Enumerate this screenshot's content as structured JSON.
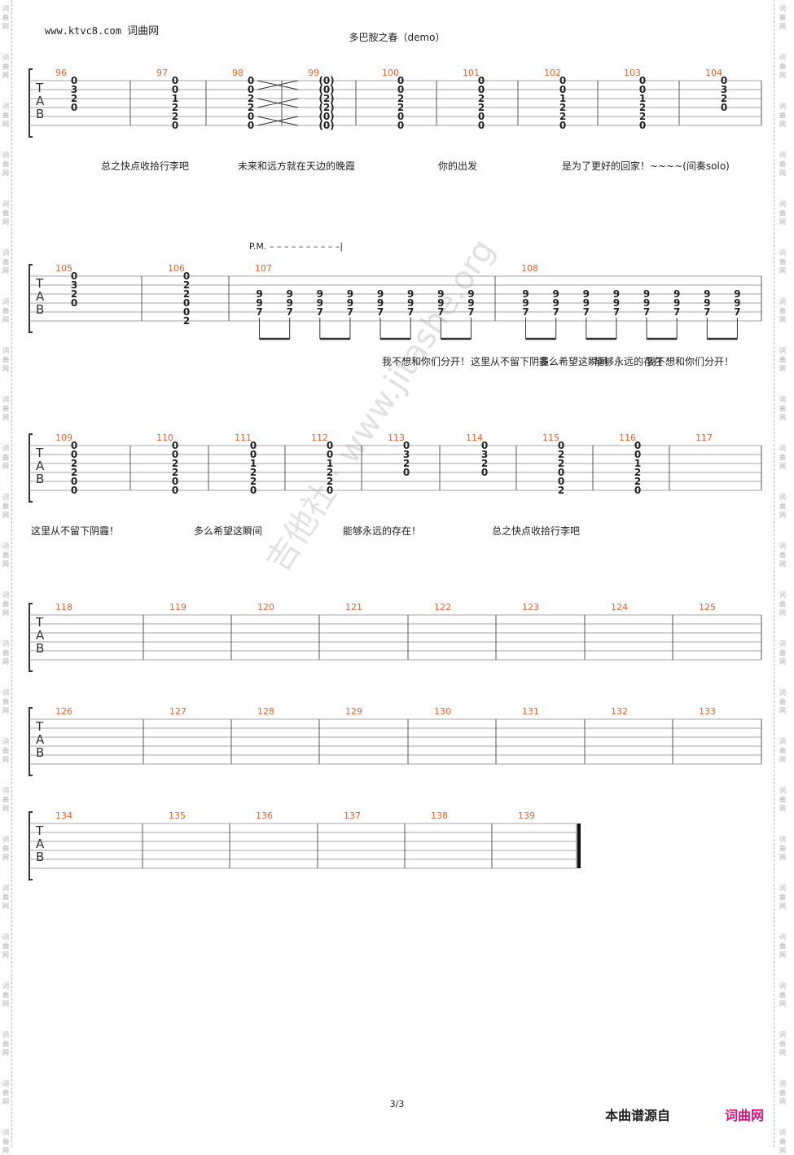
{
  "site_link": "www.ktvc8.com",
  "site_name": "词曲网",
  "title": "多巴胺之春（demo）",
  "page_number": "3/3",
  "source_label": "本曲谱源自",
  "brand": "词曲网",
  "watermark": "吉他社 · www.jitashe.org",
  "side_text": "词曲网",
  "palm_mute": "P.M.",
  "tab_letters": [
    "T",
    "A",
    "B"
  ],
  "lyrics_row1": [
    "总之快点收拾行李吧",
    "未来和远方就在天边的晚霞",
    "你的出发",
    "是为了更好的回家！~~~~(间奏solo)"
  ],
  "lyrics_row2": [
    "我不想和你们分开！",
    "这里从不留下阴霾",
    "多么希望这瞬间",
    "能够永远的存在",
    "我不想和你们分开！"
  ],
  "lyrics_row3": [
    "这里从不留下阴霾！",
    "多么希望这瞬间",
    "能够永远的存在！",
    "总之快点收拾行李吧"
  ],
  "systems": [
    {
      "measures": [
        {
          "num": "96",
          "chords": [
            [
              "0",
              "3",
              "2",
              "0",
              "",
              ""
            ]
          ]
        },
        {
          "num": "97",
          "chords": [
            [
              "0",
              "0",
              "1",
              "2",
              "2",
              "0"
            ]
          ]
        },
        {
          "num": "98",
          "chords": [
            [
              "0",
              "0",
              "2",
              "2",
              "0",
              "0"
            ]
          ]
        },
        {
          "num": "99",
          "chords": [
            [
              "(0)",
              "(0)",
              "(2)",
              "(2)",
              "(0)",
              "(0)"
            ]
          ]
        },
        {
          "num": "100",
          "chords": [
            [
              "0",
              "0",
              "2",
              "2",
              "0",
              "0"
            ]
          ]
        },
        {
          "num": "101",
          "chords": [
            [
              "0",
              "0",
              "2",
              "2",
              "0",
              "0"
            ]
          ]
        },
        {
          "num": "102",
          "chords": [
            [
              "0",
              "0",
              "1",
              "2",
              "2",
              "0"
            ]
          ]
        },
        {
          "num": "103",
          "chords": [
            [
              "0",
              "0",
              "1",
              "2",
              "2",
              "0"
            ]
          ]
        },
        {
          "num": "104",
          "chords": [
            [
              "0",
              "3",
              "2",
              "0",
              "",
              ""
            ]
          ]
        }
      ]
    },
    {
      "measures": [
        {
          "num": "105",
          "chords": [
            [
              "0",
              "3",
              "2",
              "0",
              "",
              ""
            ]
          ]
        },
        {
          "num": "106",
          "chords": [
            [
              "0",
              "2",
              "2",
              "0",
              "0",
              "2"
            ]
          ]
        },
        {
          "num": "107",
          "chords": [
            [
              "",
              "",
              "9",
              "9",
              "7",
              ""
            ],
            [
              "",
              "",
              "9",
              "9",
              "7",
              ""
            ],
            [
              "",
              "",
              "9",
              "9",
              "7",
              ""
            ],
            [
              "",
              "",
              "9",
              "9",
              "7",
              ""
            ],
            [
              "",
              "",
              "9",
              "9",
              "7",
              ""
            ],
            [
              "",
              "",
              "9",
              "9",
              "7",
              ""
            ],
            [
              "",
              "",
              "9",
              "9",
              "7",
              ""
            ],
            [
              "",
              "",
              "9",
              "9",
              "7",
              ""
            ]
          ]
        },
        {
          "num": "108",
          "chords": [
            [
              "",
              "",
              "9",
              "9",
              "7",
              ""
            ],
            [
              "",
              "",
              "9",
              "9",
              "7",
              ""
            ],
            [
              "",
              "",
              "9",
              "9",
              "7",
              ""
            ],
            [
              "",
              "",
              "9",
              "9",
              "7",
              ""
            ],
            [
              "",
              "",
              "9",
              "9",
              "7",
              ""
            ],
            [
              "",
              "",
              "9",
              "9",
              "7",
              ""
            ],
            [
              "",
              "",
              "9",
              "9",
              "7",
              ""
            ],
            [
              "",
              "",
              "9",
              "9",
              "7",
              ""
            ]
          ]
        }
      ]
    },
    {
      "measures": [
        {
          "num": "109",
          "chords": [
            [
              "0",
              "0",
              "2",
              "2",
              "0",
              "0"
            ]
          ]
        },
        {
          "num": "110",
          "chords": [
            [
              "0",
              "0",
              "2",
              "2",
              "0",
              "0"
            ]
          ]
        },
        {
          "num": "111",
          "chords": [
            [
              "0",
              "0",
              "1",
              "2",
              "2",
              "0"
            ]
          ]
        },
        {
          "num": "112",
          "chords": [
            [
              "0",
              "0",
              "1",
              "2",
              "2",
              "0"
            ]
          ]
        },
        {
          "num": "113",
          "chords": [
            [
              "0",
              "3",
              "2",
              "0",
              "",
              ""
            ]
          ]
        },
        {
          "num": "114",
          "chords": [
            [
              "0",
              "3",
              "2",
              "0",
              "",
              ""
            ]
          ]
        },
        {
          "num": "115",
          "chords": [
            [
              "0",
              "2",
              "2",
              "0",
              "0",
              "2"
            ]
          ]
        },
        {
          "num": "116",
          "chords": [
            [
              "0",
              "0",
              "1",
              "2",
              "2",
              "0"
            ]
          ]
        },
        {
          "num": "117",
          "chords": []
        }
      ]
    },
    {
      "measures": [
        {
          "num": "118",
          "chords": []
        },
        {
          "num": "119",
          "chords": []
        },
        {
          "num": "120",
          "chords": []
        },
        {
          "num": "121",
          "chords": []
        },
        {
          "num": "122",
          "chords": []
        },
        {
          "num": "123",
          "chords": []
        },
        {
          "num": "124",
          "chords": []
        },
        {
          "num": "125",
          "chords": []
        }
      ]
    },
    {
      "measures": [
        {
          "num": "126",
          "chords": []
        },
        {
          "num": "127",
          "chords": []
        },
        {
          "num": "128",
          "chords": []
        },
        {
          "num": "129",
          "chords": []
        },
        {
          "num": "130",
          "chords": []
        },
        {
          "num": "131",
          "chords": []
        },
        {
          "num": "132",
          "chords": []
        },
        {
          "num": "133",
          "chords": []
        }
      ]
    },
    {
      "measures": [
        {
          "num": "134",
          "chords": []
        },
        {
          "num": "135",
          "chords": []
        },
        {
          "num": "136",
          "chords": []
        },
        {
          "num": "137",
          "chords": []
        },
        {
          "num": "138",
          "chords": []
        },
        {
          "num": "139",
          "chords": []
        }
      ]
    }
  ],
  "colors": {
    "measure_number": "#e8602c",
    "brand": "#e0107a"
  }
}
